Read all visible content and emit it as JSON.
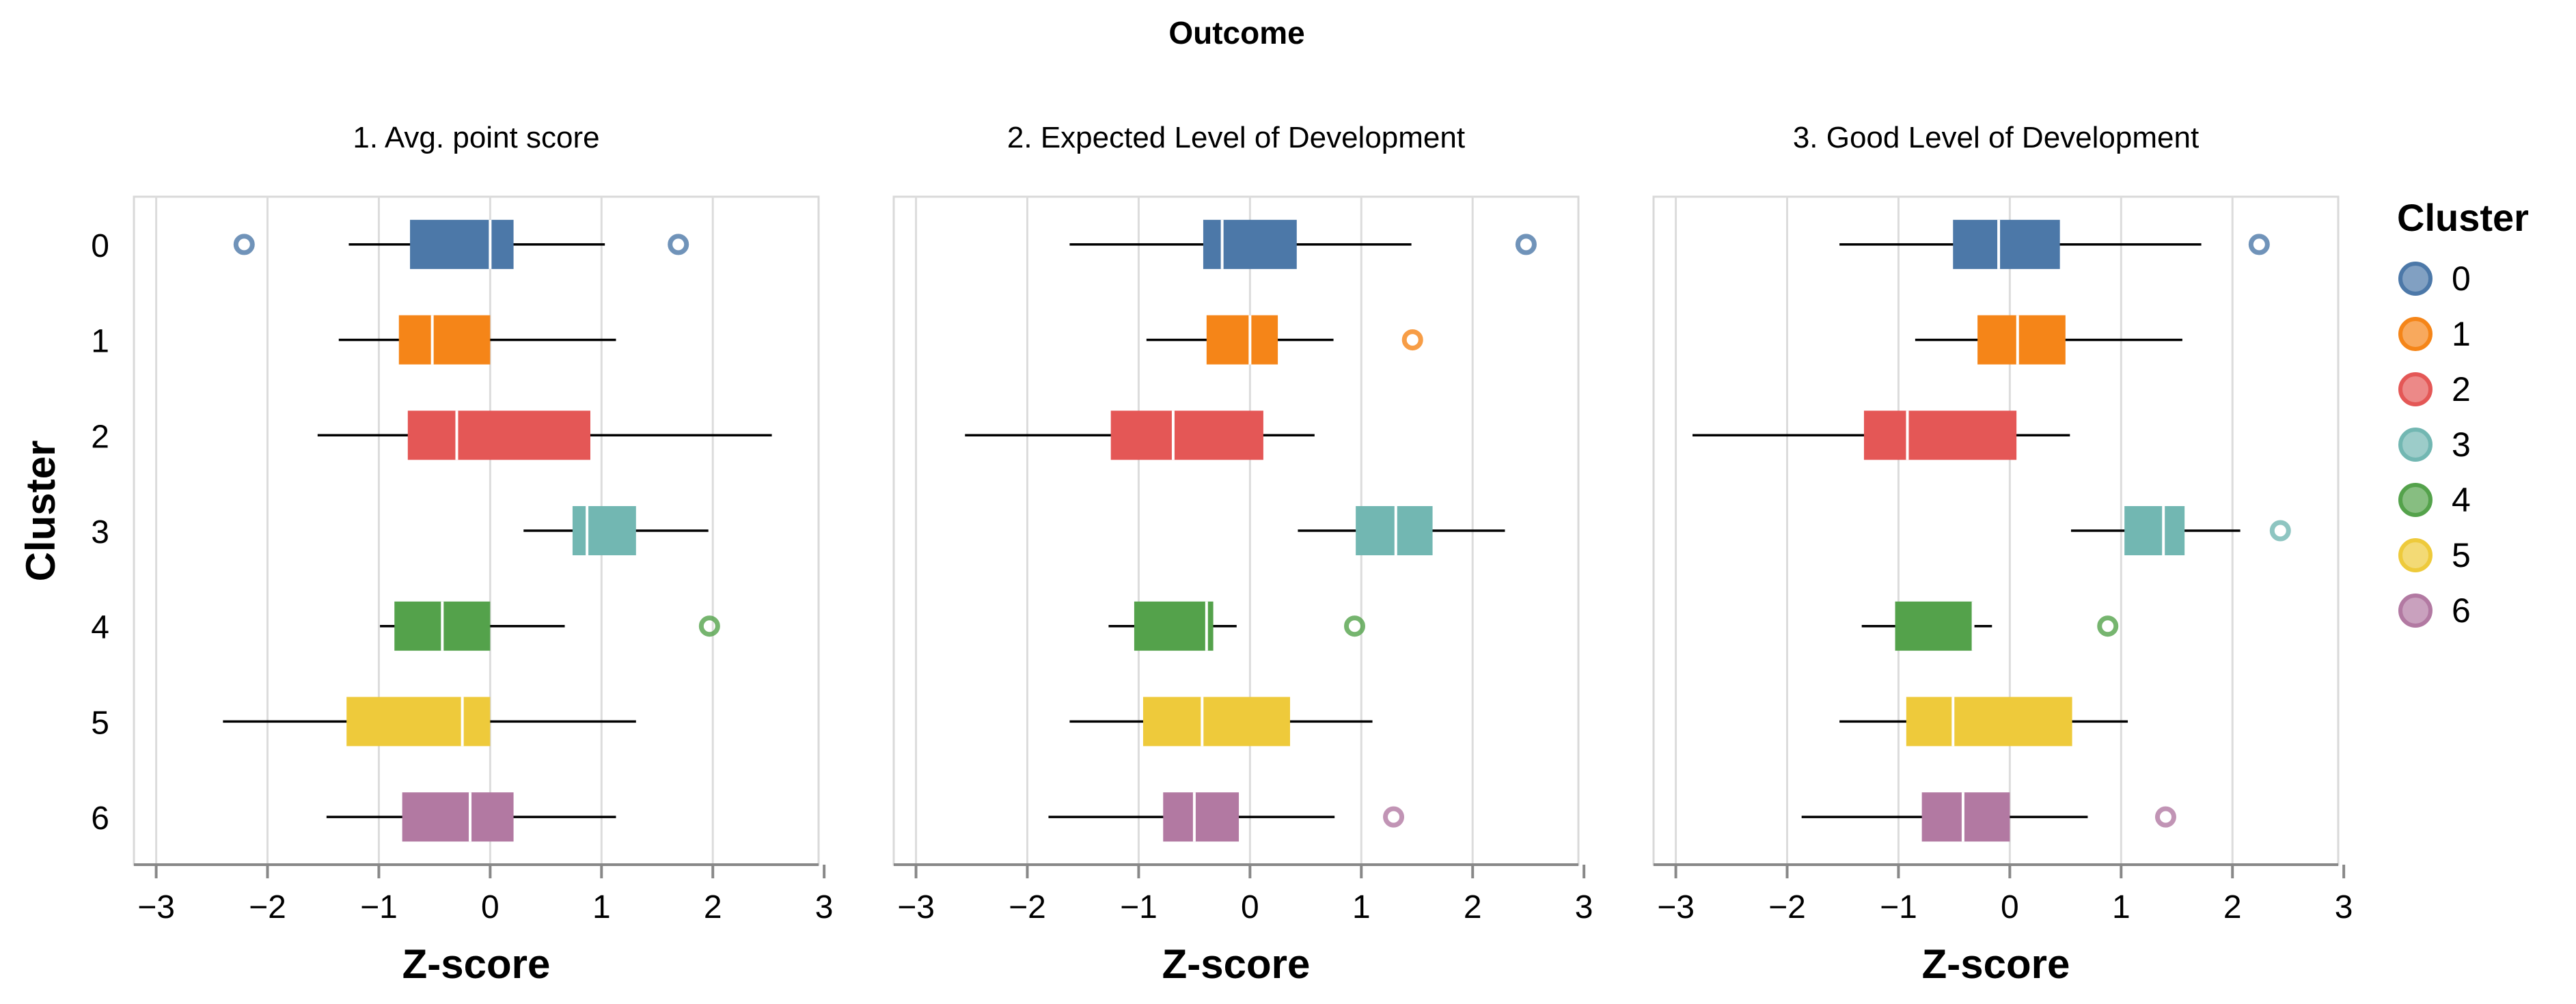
{
  "chart_data": {
    "type": "boxplot",
    "title": "Outcome",
    "y_axis": {
      "title": "Cluster",
      "categories": [
        "0",
        "1",
        "2",
        "3",
        "4",
        "5",
        "6"
      ]
    },
    "x_axis": {
      "title": "Z-score",
      "ticks": [
        "−3",
        "−2",
        "−1",
        "0",
        "1",
        "2",
        "3"
      ],
      "range": [
        -3,
        3
      ]
    },
    "grid": true,
    "legend": {
      "title": "Cluster",
      "position": "right",
      "items": [
        {
          "label": "0",
          "color": "#4c78a8"
        },
        {
          "label": "1",
          "color": "#f58518"
        },
        {
          "label": "2",
          "color": "#e45756"
        },
        {
          "label": "3",
          "color": "#72b7b2"
        },
        {
          "label": "4",
          "color": "#54a24b"
        },
        {
          "label": "5",
          "color": "#eeca3b"
        },
        {
          "label": "6",
          "color": "#b279a2"
        }
      ]
    },
    "panels": [
      {
        "title": "1. Avg. point score",
        "boxes": [
          {
            "cluster": "0",
            "whisker_low": -1.27,
            "q1": -0.72,
            "median": 0.0,
            "q3": 0.21,
            "whisker_high": 1.03,
            "outliers": [
              -2.21,
              1.69
            ]
          },
          {
            "cluster": "1",
            "whisker_low": -1.36,
            "q1": -0.82,
            "median": -0.52,
            "q3": 0.0,
            "whisker_high": 1.13,
            "outliers": []
          },
          {
            "cluster": "2",
            "whisker_low": -1.55,
            "q1": -0.74,
            "median": -0.3,
            "q3": 0.9,
            "whisker_high": 2.53,
            "outliers": []
          },
          {
            "cluster": "3",
            "whisker_low": 0.3,
            "q1": 0.74,
            "median": 0.87,
            "q3": 1.31,
            "whisker_high": 1.96,
            "outliers": []
          },
          {
            "cluster": "4",
            "whisker_low": -0.99,
            "q1": -0.86,
            "median": -0.43,
            "q3": 0.0,
            "whisker_high": 0.67,
            "outliers": [
              1.97
            ]
          },
          {
            "cluster": "5",
            "whisker_low": -2.4,
            "q1": -1.29,
            "median": -0.25,
            "q3": 0.0,
            "whisker_high": 1.31,
            "outliers": []
          },
          {
            "cluster": "6",
            "whisker_low": -1.47,
            "q1": -0.79,
            "median": -0.18,
            "q3": 0.21,
            "whisker_high": 1.13,
            "outliers": []
          }
        ]
      },
      {
        "title": "2. Expected Level of Development",
        "boxes": [
          {
            "cluster": "0",
            "whisker_low": -1.62,
            "q1": -0.42,
            "median": -0.25,
            "q3": 0.42,
            "whisker_high": 1.45,
            "outliers": [
              2.48
            ]
          },
          {
            "cluster": "1",
            "whisker_low": -0.93,
            "q1": -0.39,
            "median": 0.0,
            "q3": 0.25,
            "whisker_high": 0.75,
            "outliers": [
              1.46
            ]
          },
          {
            "cluster": "2",
            "whisker_low": -2.56,
            "q1": -1.25,
            "median": -0.69,
            "q3": 0.12,
            "whisker_high": 0.58,
            "outliers": []
          },
          {
            "cluster": "3",
            "whisker_low": 0.43,
            "q1": 0.95,
            "median": 1.31,
            "q3": 1.64,
            "whisker_high": 2.29,
            "outliers": []
          },
          {
            "cluster": "4",
            "whisker_low": -1.27,
            "q1": -1.04,
            "median": -0.39,
            "q3": -0.33,
            "whisker_high": -0.12,
            "outliers": [
              0.94
            ]
          },
          {
            "cluster": "5",
            "whisker_low": -1.62,
            "q1": -0.96,
            "median": -0.43,
            "q3": 0.36,
            "whisker_high": 1.1,
            "outliers": []
          },
          {
            "cluster": "6",
            "whisker_low": -1.81,
            "q1": -0.78,
            "median": -0.5,
            "q3": -0.1,
            "whisker_high": 0.76,
            "outliers": [
              1.29
            ]
          }
        ]
      },
      {
        "title": "3. Good Level of Development",
        "boxes": [
          {
            "cluster": "0",
            "whisker_low": -1.53,
            "q1": -0.51,
            "median": -0.1,
            "q3": 0.45,
            "whisker_high": 1.72,
            "outliers": [
              2.24
            ]
          },
          {
            "cluster": "1",
            "whisker_low": -0.85,
            "q1": -0.29,
            "median": 0.07,
            "q3": 0.5,
            "whisker_high": 1.55,
            "outliers": []
          },
          {
            "cluster": "2",
            "whisker_low": -2.85,
            "q1": -1.31,
            "median": -0.92,
            "q3": 0.06,
            "whisker_high": 0.54,
            "outliers": []
          },
          {
            "cluster": "3",
            "whisker_low": 0.55,
            "q1": 1.03,
            "median": 1.38,
            "q3": 1.57,
            "whisker_high": 2.07,
            "outliers": [
              2.43
            ]
          },
          {
            "cluster": "4",
            "whisker_low": -1.33,
            "q1": -1.03,
            "median": -0.33,
            "q3": -0.33,
            "whisker_high": -0.16,
            "outliers": [
              0.88
            ]
          },
          {
            "cluster": "5",
            "whisker_low": -1.53,
            "q1": -0.93,
            "median": -0.51,
            "q3": 0.56,
            "whisker_high": 1.06,
            "outliers": []
          },
          {
            "cluster": "6",
            "whisker_low": -1.87,
            "q1": -0.79,
            "median": -0.42,
            "q3": 0.0,
            "whisker_high": 0.7,
            "outliers": [
              1.4
            ]
          }
        ]
      }
    ]
  }
}
